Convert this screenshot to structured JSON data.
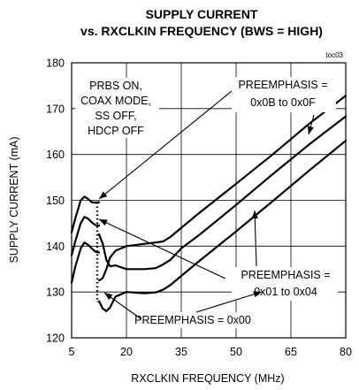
{
  "chart_data": {
    "type": "line",
    "title": "SUPPLY CURRENT",
    "subtitle": "vs. RXCLKIN FREQUENCY (BWS = HIGH)",
    "figure_id": "toc03",
    "xlabel": "RXCLKIN FREQUENCY (MHz)",
    "ylabel": "SUPPLY CURRENT (mA)",
    "xlim": [
      5,
      80
    ],
    "ylim": [
      120,
      180
    ],
    "xticks": [
      5,
      20,
      35,
      50,
      65,
      80
    ],
    "yticks": [
      120,
      130,
      140,
      150,
      160,
      170,
      180
    ],
    "grid": true,
    "conditions": [
      "PRBS ON,",
      "COAX MODE,",
      "SS OFF,",
      "HDCP OFF"
    ],
    "series": [
      {
        "name": "PREEMPHASIS = 0x0B to 0x0F",
        "points_a": [
          [
            5,
            143
          ],
          [
            6,
            146
          ],
          [
            7.5,
            150
          ],
          [
            8.5,
            150.8
          ],
          [
            9.5,
            150.3
          ],
          [
            10.5,
            149.6
          ],
          [
            11.5,
            149.5
          ],
          [
            12.5,
            149.6
          ]
        ],
        "points_b": [
          [
            12.5,
            132.5
          ],
          [
            13.5,
            133
          ],
          [
            14.5,
            135
          ],
          [
            15.5,
            137.5
          ],
          [
            17,
            139
          ],
          [
            20,
            140
          ],
          [
            25,
            140.5
          ],
          [
            28,
            140.8
          ],
          [
            30,
            141
          ],
          [
            32,
            142
          ],
          [
            35,
            144
          ],
          [
            40,
            147.3
          ],
          [
            50,
            153.6
          ],
          [
            60,
            160
          ],
          [
            70,
            166.7
          ],
          [
            80,
            172.8
          ]
        ]
      },
      {
        "name": "PREEMPHASIS = 0x01 to 0x04",
        "points_a": [
          [
            5,
            138
          ],
          [
            6,
            141
          ],
          [
            7.5,
            145
          ],
          [
            8.5,
            146.4
          ],
          [
            9.5,
            146
          ],
          [
            10.5,
            145.2
          ],
          [
            11.5,
            144.6
          ],
          [
            12.5,
            144.5
          ]
        ],
        "points_b": [
          [
            12.5,
            142.6
          ],
          [
            13.5,
            140.6
          ],
          [
            14.5,
            137
          ],
          [
            15.5,
            135.6
          ],
          [
            17,
            135.8
          ],
          [
            20,
            135
          ],
          [
            25,
            135
          ],
          [
            28,
            135.2
          ],
          [
            30,
            136
          ],
          [
            32,
            137
          ],
          [
            35,
            139.5
          ],
          [
            40,
            142.5
          ],
          [
            50,
            149
          ],
          [
            60,
            155.7
          ],
          [
            70,
            162.2
          ],
          [
            80,
            168.3
          ]
        ]
      },
      {
        "name": "PREEMPHASIS = 0x00",
        "points_a": [
          [
            5,
            132
          ],
          [
            6,
            135.5
          ],
          [
            7.5,
            139.5
          ],
          [
            8.5,
            140.8
          ],
          [
            9.5,
            140.3
          ],
          [
            10.5,
            139.5
          ],
          [
            11.5,
            138.8
          ],
          [
            12.5,
            138.6
          ]
        ],
        "points_b": [
          [
            12.5,
            128
          ],
          [
            13.5,
            126.4
          ],
          [
            14.5,
            125.8
          ],
          [
            15.5,
            126.6
          ],
          [
            17,
            129
          ],
          [
            20,
            130
          ],
          [
            25,
            129.7
          ],
          [
            28,
            129.9
          ],
          [
            30,
            130.5
          ],
          [
            32,
            131.5
          ],
          [
            35,
            133.5
          ],
          [
            40,
            136.8
          ],
          [
            50,
            143.2
          ],
          [
            60,
            149.8
          ],
          [
            70,
            156.5
          ],
          [
            80,
            163
          ]
        ]
      }
    ],
    "annotations": [
      {
        "text": "PREEMPHASIS =",
        "text2": "0x0B to 0x0F"
      },
      {
        "text": "PREEMPHASIS =",
        "text2": "0x01 to 0x04"
      },
      {
        "text": "PREEMPHASIS = 0x00"
      }
    ],
    "colors": {
      "line": "#000000",
      "grid": "#000000",
      "background": "#ffffff"
    }
  }
}
